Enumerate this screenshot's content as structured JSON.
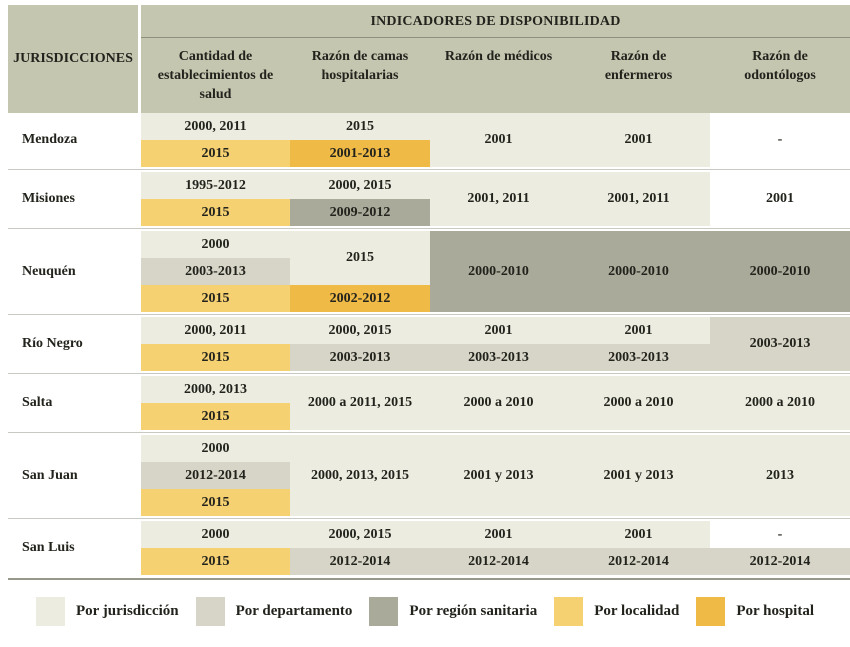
{
  "chart_data": {
    "type": "table",
    "title": "INDICADORES DE DISPONIBILIDAD",
    "row_header_label": "JURISDICCIONES",
    "columns": [
      "Cantidad de\nestablecimientos de\nsalud",
      "Razón de camas\nhospitalarias",
      "Razón de médicos",
      "Razón de\nenfermeros",
      "Razón de\nodontólogos"
    ],
    "coverage_colors": {
      "jurisdiccion": "#ecede0",
      "departamento": "#d6d5c7",
      "region": "#a9aa99",
      "localidad": "#f6d171",
      "hospital": "#efba45",
      "none": "#ffffff"
    },
    "header_bg": "#c5c6b0",
    "legend": [
      {
        "label": "Por jurisdicción",
        "level": "jurisdiccion"
      },
      {
        "label": "Por departamento",
        "level": "departamento"
      },
      {
        "label": "Por región sanitaria",
        "level": "region"
      },
      {
        "label": "Por localidad",
        "level": "localidad"
      },
      {
        "label": "Por hospital",
        "level": "hospital"
      }
    ],
    "rows": [
      {
        "jurisdiction": "Mendoza",
        "cells": [
          [
            {
              "text": "2000, 2011",
              "level": "jurisdiccion",
              "rows": 1
            },
            {
              "text": "2015",
              "level": "localidad",
              "rows": 1
            }
          ],
          [
            {
              "text": "2015",
              "level": "jurisdiccion",
              "rows": 1
            },
            {
              "text": "2001-2013",
              "level": "hospital",
              "rows": 1
            }
          ],
          [
            {
              "text": "2001",
              "level": "jurisdiccion",
              "rows": 2
            }
          ],
          [
            {
              "text": "2001",
              "level": "jurisdiccion",
              "rows": 2
            }
          ],
          [
            {
              "text": "-",
              "level": "none",
              "rows": 2
            }
          ]
        ]
      },
      {
        "jurisdiction": "Misiones",
        "cells": [
          [
            {
              "text": "1995-2012",
              "level": "jurisdiccion",
              "rows": 1
            },
            {
              "text": "2015",
              "level": "localidad",
              "rows": 1
            }
          ],
          [
            {
              "text": "2000, 2015",
              "level": "jurisdiccion",
              "rows": 1
            },
            {
              "text": "2009-2012",
              "level": "region",
              "rows": 1
            }
          ],
          [
            {
              "text": "2001, 2011",
              "level": "jurisdiccion",
              "rows": 2
            }
          ],
          [
            {
              "text": "2001, 2011",
              "level": "jurisdiccion",
              "rows": 2
            }
          ],
          [
            {
              "text": "2001",
              "level": "none",
              "rows": 2
            }
          ]
        ]
      },
      {
        "jurisdiction": "Neuquén",
        "cells": [
          [
            {
              "text": "2000",
              "level": "jurisdiccion",
              "rows": 1
            },
            {
              "text": "2003-2013",
              "level": "departamento",
              "rows": 1
            },
            {
              "text": "2015",
              "level": "localidad",
              "rows": 1
            }
          ],
          [
            {
              "text": "2015",
              "level": "jurisdiccion",
              "rows": 2
            },
            {
              "text": "2002-2012",
              "level": "hospital",
              "rows": 1
            }
          ],
          [
            {
              "text": "2000-2010",
              "level": "region",
              "rows": 3
            }
          ],
          [
            {
              "text": "2000-2010",
              "level": "region",
              "rows": 3
            }
          ],
          [
            {
              "text": "2000-2010",
              "level": "region",
              "rows": 3
            }
          ]
        ]
      },
      {
        "jurisdiction": "Río Negro",
        "cells": [
          [
            {
              "text": "2000, 2011",
              "level": "jurisdiccion",
              "rows": 1
            },
            {
              "text": "2015",
              "level": "localidad",
              "rows": 1
            }
          ],
          [
            {
              "text": "2000, 2015",
              "level": "jurisdiccion",
              "rows": 1
            },
            {
              "text": "2003-2013",
              "level": "departamento",
              "rows": 1
            }
          ],
          [
            {
              "text": "2001",
              "level": "jurisdiccion",
              "rows": 1
            },
            {
              "text": "2003-2013",
              "level": "departamento",
              "rows": 1
            }
          ],
          [
            {
              "text": "2001",
              "level": "jurisdiccion",
              "rows": 1
            },
            {
              "text": "2003-2013",
              "level": "departamento",
              "rows": 1
            }
          ],
          [
            {
              "text": "2003-2013",
              "level": "departamento",
              "rows": 2
            }
          ]
        ]
      },
      {
        "jurisdiction": "Salta",
        "cells": [
          [
            {
              "text": "2000, 2013",
              "level": "jurisdiccion",
              "rows": 1
            },
            {
              "text": "2015",
              "level": "localidad",
              "rows": 1
            }
          ],
          [
            {
              "text": "2000 a 2011, 2015",
              "level": "jurisdiccion",
              "rows": 2
            }
          ],
          [
            {
              "text": "2000 a 2010",
              "level": "jurisdiccion",
              "rows": 2
            }
          ],
          [
            {
              "text": "2000 a 2010",
              "level": "jurisdiccion",
              "rows": 2
            }
          ],
          [
            {
              "text": "2000 a 2010",
              "level": "jurisdiccion",
              "rows": 2
            }
          ]
        ]
      },
      {
        "jurisdiction": "San Juan",
        "cells": [
          [
            {
              "text": "2000",
              "level": "jurisdiccion",
              "rows": 1
            },
            {
              "text": "2012-2014",
              "level": "departamento",
              "rows": 1
            },
            {
              "text": "2015",
              "level": "localidad",
              "rows": 1
            }
          ],
          [
            {
              "text": "2000, 2013, 2015",
              "level": "jurisdiccion",
              "rows": 3
            }
          ],
          [
            {
              "text": "2001 y 2013",
              "level": "jurisdiccion",
              "rows": 3
            }
          ],
          [
            {
              "text": "2001 y 2013",
              "level": "jurisdiccion",
              "rows": 3
            }
          ],
          [
            {
              "text": "2013",
              "level": "jurisdiccion",
              "rows": 3
            }
          ]
        ]
      },
      {
        "jurisdiction": "San Luis",
        "cells": [
          [
            {
              "text": "2000",
              "level": "jurisdiccion",
              "rows": 1
            },
            {
              "text": "2015",
              "level": "localidad",
              "rows": 1
            }
          ],
          [
            {
              "text": "2000, 2015",
              "level": "jurisdiccion",
              "rows": 1
            },
            {
              "text": "2012-2014",
              "level": "departamento",
              "rows": 1
            }
          ],
          [
            {
              "text": "2001",
              "level": "jurisdiccion",
              "rows": 1
            },
            {
              "text": "2012-2014",
              "level": "departamento",
              "rows": 1
            }
          ],
          [
            {
              "text": "2001",
              "level": "jurisdiccion",
              "rows": 1
            },
            {
              "text": "2012-2014",
              "level": "departamento",
              "rows": 1
            }
          ],
          [
            {
              "text": "-",
              "level": "none",
              "rows": 1
            },
            {
              "text": "2012-2014",
              "level": "departamento",
              "rows": 1
            }
          ]
        ]
      }
    ]
  }
}
